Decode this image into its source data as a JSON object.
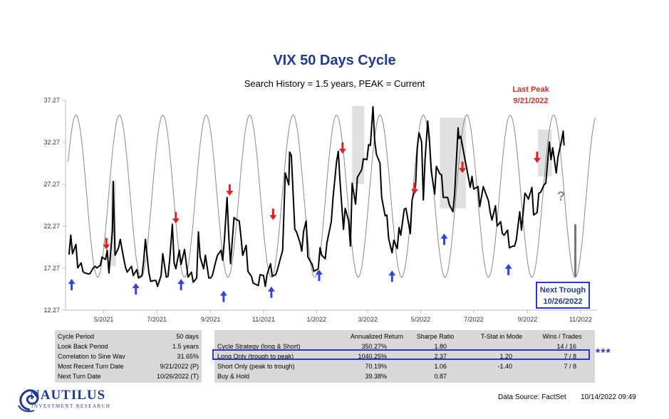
{
  "chart_data": {
    "type": "line",
    "title": "VIX 50 Days Cycle",
    "subtitle": "Search History = 1.5 years, PEAK = Current",
    "y_ticks": [
      "37.27",
      "32.27",
      "27.27",
      "22.27",
      "17.27",
      "12.27"
    ],
    "x_ticks": [
      "5/2021",
      "7/2021",
      "9/2021",
      "11/2021",
      "1/2022",
      "3/2022",
      "5/2022",
      "7/2022",
      "9/2022",
      "11/2022"
    ],
    "ylim": [
      12.27,
      37.27
    ],
    "xlim": [
      "2021-03-18",
      "2022-11-20"
    ],
    "x_date_ticks": [
      "2021-05-01",
      "2021-07-01",
      "2021-09-01",
      "2021-11-01",
      "2022-01-01",
      "2022-03-01",
      "2022-05-01",
      "2022-07-01",
      "2022-09-01",
      "2022-11-01"
    ],
    "grid": false,
    "series": [
      {
        "kind": "vix",
        "points": [
          [
            "2021-03-22",
            18.9
          ],
          [
            "2021-03-24",
            21.2
          ],
          [
            "2021-03-26",
            19.0
          ],
          [
            "2021-03-30",
            20.1
          ],
          [
            "2021-04-01",
            17.3
          ],
          [
            "2021-04-05",
            17.9
          ],
          [
            "2021-04-07",
            16.9
          ],
          [
            "2021-04-09",
            16.7
          ],
          [
            "2021-04-13",
            16.6
          ],
          [
            "2021-04-15",
            16.6
          ],
          [
            "2021-04-19",
            17.3
          ],
          [
            "2021-04-21",
            17.5
          ],
          [
            "2021-04-23",
            17.3
          ],
          [
            "2021-04-27",
            17.6
          ],
          [
            "2021-04-29",
            18.6
          ],
          [
            "2021-05-03",
            18.3
          ],
          [
            "2021-05-05",
            19.4
          ],
          [
            "2021-05-07",
            16.7
          ],
          [
            "2021-05-11",
            21.8
          ],
          [
            "2021-05-12",
            27.6
          ],
          [
            "2021-05-14",
            18.8
          ],
          [
            "2021-05-18",
            19.7
          ],
          [
            "2021-05-20",
            20.7
          ],
          [
            "2021-05-24",
            18.4
          ],
          [
            "2021-05-26",
            17.4
          ],
          [
            "2021-05-28",
            16.8
          ],
          [
            "2021-06-02",
            17.5
          ],
          [
            "2021-06-04",
            16.4
          ],
          [
            "2021-06-08",
            17.1
          ],
          [
            "2021-06-10",
            16.1
          ],
          [
            "2021-06-14",
            16.4
          ],
          [
            "2021-06-16",
            18.2
          ],
          [
            "2021-06-18",
            20.7
          ],
          [
            "2021-06-22",
            16.7
          ],
          [
            "2021-06-24",
            15.7
          ],
          [
            "2021-06-28",
            15.8
          ],
          [
            "2021-06-30",
            15.8
          ],
          [
            "2021-07-02",
            15.1
          ],
          [
            "2021-07-06",
            16.4
          ],
          [
            "2021-07-08",
            19.0
          ],
          [
            "2021-07-12",
            16.2
          ],
          [
            "2021-07-14",
            16.3
          ],
          [
            "2021-07-16",
            18.4
          ],
          [
            "2021-07-19",
            22.5
          ],
          [
            "2021-07-21",
            17.9
          ],
          [
            "2021-07-23",
            17.2
          ],
          [
            "2021-07-27",
            19.4
          ],
          [
            "2021-07-29",
            17.7
          ],
          [
            "2021-08-02",
            19.5
          ],
          [
            "2021-08-04",
            17.9
          ],
          [
            "2021-08-06",
            16.2
          ],
          [
            "2021-08-10",
            16.8
          ],
          [
            "2021-08-12",
            15.6
          ],
          [
            "2021-08-16",
            16.1
          ],
          [
            "2021-08-18",
            21.6
          ],
          [
            "2021-08-20",
            18.6
          ],
          [
            "2021-08-24",
            17.2
          ],
          [
            "2021-08-26",
            18.8
          ],
          [
            "2021-08-30",
            16.1
          ],
          [
            "2021-09-01",
            16.1
          ],
          [
            "2021-09-03",
            16.4
          ],
          [
            "2021-09-07",
            18.1
          ],
          [
            "2021-09-09",
            18.8
          ],
          [
            "2021-09-13",
            19.4
          ],
          [
            "2021-09-15",
            18.2
          ],
          [
            "2021-09-17",
            20.8
          ],
          [
            "2021-09-20",
            25.7
          ],
          [
            "2021-09-22",
            20.9
          ],
          [
            "2021-09-24",
            17.8
          ],
          [
            "2021-09-28",
            23.3
          ],
          [
            "2021-09-30",
            23.1
          ],
          [
            "2021-10-04",
            22.9
          ],
          [
            "2021-10-06",
            21.0
          ],
          [
            "2021-10-08",
            18.8
          ],
          [
            "2021-10-12",
            20.0
          ],
          [
            "2021-10-14",
            16.9
          ],
          [
            "2021-10-18",
            16.3
          ],
          [
            "2021-10-20",
            15.5
          ],
          [
            "2021-10-22",
            15.4
          ],
          [
            "2021-10-26",
            15.2
          ],
          [
            "2021-10-28",
            16.5
          ],
          [
            "2021-11-01",
            16.4
          ],
          [
            "2021-11-03",
            15.1
          ],
          [
            "2021-11-05",
            16.5
          ],
          [
            "2021-11-09",
            17.8
          ],
          [
            "2021-11-11",
            16.3
          ],
          [
            "2021-11-15",
            16.5
          ],
          [
            "2021-11-17",
            17.1
          ],
          [
            "2021-11-19",
            17.9
          ],
          [
            "2021-11-23",
            19.4
          ],
          [
            "2021-11-26",
            28.6
          ],
          [
            "2021-11-30",
            27.2
          ],
          [
            "2021-12-01",
            31.1
          ],
          [
            "2021-12-03",
            30.7
          ],
          [
            "2021-12-07",
            21.9
          ],
          [
            "2021-12-09",
            21.6
          ],
          [
            "2021-12-13",
            20.3
          ],
          [
            "2021-12-15",
            19.3
          ],
          [
            "2021-12-17",
            21.6
          ],
          [
            "2021-12-20",
            22.9
          ],
          [
            "2021-12-22",
            18.6
          ],
          [
            "2021-12-27",
            17.7
          ],
          [
            "2021-12-29",
            16.9
          ],
          [
            "2022-01-03",
            17.2
          ],
          [
            "2022-01-05",
            19.7
          ],
          [
            "2022-01-07",
            18.8
          ],
          [
            "2022-01-11",
            18.4
          ],
          [
            "2022-01-13",
            20.3
          ],
          [
            "2022-01-18",
            22.8
          ],
          [
            "2022-01-20",
            25.6
          ],
          [
            "2022-01-24",
            29.9
          ],
          [
            "2022-01-26",
            31.2
          ],
          [
            "2022-01-28",
            27.7
          ],
          [
            "2022-02-01",
            21.9
          ],
          [
            "2022-02-03",
            24.4
          ],
          [
            "2022-02-07",
            22.9
          ],
          [
            "2022-02-09",
            19.9
          ],
          [
            "2022-02-11",
            27.4
          ],
          [
            "2022-02-15",
            24.9
          ],
          [
            "2022-02-17",
            28.1
          ],
          [
            "2022-02-22",
            29.0
          ],
          [
            "2022-02-24",
            30.3
          ],
          [
            "2022-02-28",
            30.2
          ],
          [
            "2022-03-02",
            32.0
          ],
          [
            "2022-03-04",
            31.9
          ],
          [
            "2022-03-07",
            36.5
          ],
          [
            "2022-03-09",
            32.5
          ],
          [
            "2022-03-11",
            30.8
          ],
          [
            "2022-03-15",
            29.8
          ],
          [
            "2022-03-17",
            25.7
          ],
          [
            "2022-03-21",
            23.5
          ],
          [
            "2022-03-23",
            23.6
          ],
          [
            "2022-03-25",
            20.8
          ],
          [
            "2022-03-29",
            19.1
          ],
          [
            "2022-03-31",
            20.6
          ],
          [
            "2022-04-04",
            19.6
          ],
          [
            "2022-04-06",
            22.1
          ],
          [
            "2022-04-08",
            21.2
          ],
          [
            "2022-04-12",
            24.3
          ],
          [
            "2022-04-14",
            24.4
          ],
          [
            "2022-04-19",
            21.4
          ],
          [
            "2022-04-21",
            25.4
          ],
          [
            "2022-04-25",
            27.0
          ],
          [
            "2022-04-27",
            31.6
          ],
          [
            "2022-04-29",
            33.4
          ],
          [
            "2022-05-02",
            32.3
          ],
          [
            "2022-05-04",
            25.4
          ],
          [
            "2022-05-06",
            30.2
          ],
          [
            "2022-05-09",
            34.8
          ],
          [
            "2022-05-11",
            32.6
          ],
          [
            "2022-05-13",
            28.9
          ],
          [
            "2022-05-17",
            26.1
          ],
          [
            "2022-05-19",
            29.4
          ],
          [
            "2022-05-23",
            28.5
          ],
          [
            "2022-05-25",
            28.4
          ],
          [
            "2022-05-27",
            25.7
          ],
          [
            "2022-06-01",
            25.7
          ],
          [
            "2022-06-03",
            24.8
          ],
          [
            "2022-06-07",
            24.0
          ],
          [
            "2022-06-09",
            26.1
          ],
          [
            "2022-06-13",
            34.0
          ],
          [
            "2022-06-14",
            32.7
          ],
          [
            "2022-06-16",
            33.0
          ],
          [
            "2022-06-21",
            30.2
          ],
          [
            "2022-06-23",
            29.1
          ],
          [
            "2022-06-27",
            26.9
          ],
          [
            "2022-06-29",
            28.2
          ],
          [
            "2022-07-01",
            26.7
          ],
          [
            "2022-07-06",
            27.0
          ],
          [
            "2022-07-08",
            24.6
          ],
          [
            "2022-07-12",
            27.0
          ],
          [
            "2022-07-14",
            26.4
          ],
          [
            "2022-07-18",
            25.3
          ],
          [
            "2022-07-20",
            23.9
          ],
          [
            "2022-07-22",
            23.0
          ],
          [
            "2022-07-26",
            24.7
          ],
          [
            "2022-07-28",
            22.3
          ],
          [
            "2022-08-01",
            22.8
          ],
          [
            "2022-08-03",
            21.4
          ],
          [
            "2022-08-05",
            21.2
          ],
          [
            "2022-08-09",
            21.8
          ],
          [
            "2022-08-11",
            19.7
          ],
          [
            "2022-08-15",
            19.9
          ],
          [
            "2022-08-17",
            19.9
          ],
          [
            "2022-08-19",
            20.6
          ],
          [
            "2022-08-23",
            24.0
          ],
          [
            "2022-08-25",
            21.8
          ],
          [
            "2022-08-29",
            26.2
          ],
          [
            "2022-08-31",
            25.9
          ],
          [
            "2022-09-02",
            25.5
          ],
          [
            "2022-09-06",
            26.9
          ],
          [
            "2022-09-08",
            23.6
          ],
          [
            "2022-09-12",
            23.9
          ],
          [
            "2022-09-14",
            26.2
          ],
          [
            "2022-09-16",
            26.3
          ],
          [
            "2022-09-20",
            27.2
          ],
          [
            "2022-09-22",
            27.4
          ],
          [
            "2022-09-26",
            32.3
          ],
          [
            "2022-09-28",
            30.2
          ],
          [
            "2022-09-30",
            31.6
          ],
          [
            "2022-10-04",
            28.6
          ],
          [
            "2022-10-06",
            30.5
          ],
          [
            "2022-10-10",
            32.4
          ],
          [
            "2022-10-12",
            33.6
          ],
          [
            "2022-10-13",
            31.9
          ]
        ]
      },
      {
        "kind": "sine",
        "cycle_days": 50,
        "reference_trough": "2022-10-26",
        "ymin": 16.2,
        "ymax": 35.5,
        "end": "2022-11-18"
      }
    ],
    "peak_boxes": [
      {
        "start": "2021-05-09",
        "end": "2021-05-15",
        "ylim": [
          17.5,
          27.7
        ]
      },
      {
        "start": "2022-02-11",
        "end": "2022-02-25",
        "ylim": [
          27.3,
          36.6
        ]
      },
      {
        "start": "2022-05-23",
        "end": "2022-06-22",
        "ylim": [
          24.4,
          35.2
        ]
      },
      {
        "start": "2022-09-13",
        "end": "2022-09-29",
        "ylim": [
          28.2,
          33.8
        ]
      }
    ],
    "down_arrows": [
      "2021-05-04",
      "2021-07-23",
      "2021-09-23",
      "2021-11-12",
      "2022-01-31",
      "2022-04-24",
      "2022-06-18",
      "2022-09-12"
    ],
    "down_arrow_levels": [
      19.5,
      22.6,
      25.9,
      23.0,
      30.9,
      26.1,
      28.6,
      29.8
    ],
    "up_arrows": [
      "2021-03-25",
      "2021-06-07",
      "2021-07-29",
      "2021-09-16",
      "2021-11-10",
      "2022-01-04",
      "2022-03-29",
      "2022-05-28",
      "2022-08-10"
    ],
    "up_arrow_levels": [
      16.5,
      16.0,
      16.5,
      15.1,
      15.6,
      17.6,
      17.5,
      21.9,
      18.3
    ],
    "projection": {
      "date": "2022-10-26",
      "from": 22.5,
      "to": 16.2
    }
  },
  "annotations": {
    "last_peak_line1": "Last Peak",
    "last_peak_line2": "9/21/2022",
    "next_trough_line1": "Next Trough",
    "next_trough_line2": "10/26/2022",
    "question_mark": "?",
    "stars": "***"
  },
  "colors": {
    "title": "#1f3a93",
    "peak_label": "#d0312d",
    "down_arrow": "#e02020",
    "up_arrow": "#3344dd",
    "sine": "#888888",
    "box": "#e0e0e0"
  },
  "left_table": [
    {
      "label": "Cycle Period",
      "value": "50 days"
    },
    {
      "label": "Look Back Period",
      "value": "1.5 years"
    },
    {
      "label": "Correlation to Sine Wav",
      "value": "31.65%"
    },
    {
      "label": "Most Recent Turn Date",
      "value": "9/21/2022 (P)"
    },
    {
      "label": "Next Turn Date",
      "value": "10/26/2022 (T)"
    }
  ],
  "right_table": {
    "headers": [
      "",
      "Annualized Return",
      "Sharpe Ratio",
      "T-Stat in Mode",
      "Wins / Trades"
    ],
    "rows": [
      [
        "Cycle Strategy (long & Short)",
        "350.27%",
        "1.80",
        "",
        "14 / 16"
      ],
      [
        "Long Only (trough to peak)",
        "1040.25%",
        "2.37",
        "1.20",
        "7 / 8"
      ],
      [
        "Short Only (peak to trough)",
        "70.19%",
        "1.06",
        "-1.40",
        "7 / 8"
      ],
      [
        "Buy & Hold",
        "39.38%",
        "0.87",
        "",
        ""
      ]
    ]
  },
  "logo": {
    "name": "NAUTILUS",
    "sub": "INVESTMENT RESEARCH"
  },
  "footer": {
    "source": "Data Source: FactSet",
    "stamp": "10/14/2022 09:49"
  }
}
